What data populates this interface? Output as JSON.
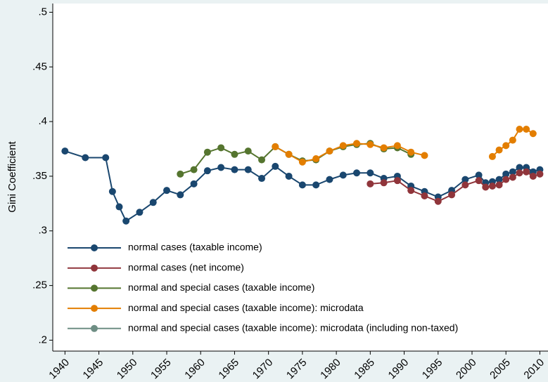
{
  "chart_data": {
    "type": "line",
    "y_label": "Gini Coefficient",
    "xlim": [
      1938.2,
      2011.2
    ],
    "xticks": [
      1940,
      1945,
      1950,
      1955,
      1960,
      1965,
      1970,
      1975,
      1980,
      1985,
      1990,
      1995,
      2000,
      2005,
      2010
    ],
    "ylim": [
      0.19,
      0.508
    ],
    "yticks": [
      {
        "value": 0.2,
        "label": ".2"
      },
      {
        "value": 0.25,
        "label": ".25"
      },
      {
        "value": 0.3,
        "label": ".3"
      },
      {
        "value": 0.35,
        "label": ".35"
      },
      {
        "value": 0.4,
        "label": ".4"
      },
      {
        "value": 0.45,
        "label": ".45"
      },
      {
        "value": 0.5,
        "label": ".5"
      }
    ],
    "grid": false,
    "legend": "bottom-left",
    "series": [
      {
        "name": "normal cases (taxable income)",
        "color": "#1a476f",
        "x": [
          1940,
          1943,
          1946,
          1947,
          1948,
          1949,
          1951,
          1953,
          1955,
          1957,
          1959,
          1961,
          1963,
          1965,
          1967,
          1969,
          1971,
          1973,
          1975,
          1977,
          1979,
          1981,
          1983,
          1985,
          1987,
          1989,
          1991,
          1993,
          1995,
          1997,
          1999,
          2001,
          2002,
          2003,
          2004,
          2005,
          2006,
          2007,
          2008,
          2009,
          2010
        ],
        "values": [
          0.373,
          0.367,
          0.367,
          0.336,
          0.322,
          0.309,
          0.317,
          0.326,
          0.337,
          0.333,
          0.343,
          0.355,
          0.358,
          0.356,
          0.356,
          0.348,
          0.359,
          0.35,
          0.342,
          0.342,
          0.347,
          0.351,
          0.353,
          0.353,
          0.348,
          0.35,
          0.341,
          0.336,
          0.331,
          0.337,
          0.347,
          0.351,
          0.344,
          0.345,
          0.347,
          0.352,
          0.354,
          0.358,
          0.358,
          0.354,
          0.356
        ]
      },
      {
        "name": "normal cases (net income)",
        "color": "#90353b",
        "x": [
          1985,
          1987,
          1989,
          1991,
          1993,
          1995,
          1997,
          1999,
          2001,
          2002,
          2003,
          2004,
          2005,
          2006,
          2007,
          2008,
          2009,
          2010
        ],
        "values": [
          0.343,
          0.344,
          0.346,
          0.337,
          0.332,
          0.327,
          0.333,
          0.342,
          0.346,
          0.34,
          0.341,
          0.342,
          0.347,
          0.349,
          0.353,
          0.354,
          0.35,
          0.352
        ]
      },
      {
        "name": "normal and special cases (taxable income)",
        "color": "#55752f",
        "x": [
          1957,
          1959,
          1961,
          1963,
          1965,
          1967,
          1969,
          1971,
          1973,
          1975,
          1977,
          1979,
          1981,
          1983,
          1985,
          1987,
          1989,
          1991
        ],
        "values": [
          0.352,
          0.356,
          0.372,
          0.376,
          0.37,
          0.373,
          0.365,
          0.377,
          0.37,
          0.364,
          0.365,
          0.373,
          0.377,
          0.379,
          0.38,
          0.375,
          0.376,
          0.37
        ]
      },
      {
        "name": "normal and special cases (taxable income): microdata",
        "color": "#e37e00",
        "x": [
          1971,
          1973,
          1975,
          1977,
          1979,
          1981,
          1983,
          1985,
          1987,
          1989,
          1991,
          1993,
          1998,
          2003,
          2004,
          2005,
          2006,
          2007,
          2008,
          2009
        ],
        "values": [
          0.377,
          0.37,
          0.363,
          0.366,
          0.373,
          0.378,
          0.38,
          0.379,
          0.376,
          0.378,
          0.372,
          0.369,
          null,
          0.368,
          0.374,
          0.378,
          0.383,
          0.393,
          0.393,
          0.389
        ]
      },
      {
        "name": "normal and special cases (taxable income): microdata (including non-taxed)",
        "color": "#6e8e84",
        "x": [],
        "values": []
      }
    ]
  }
}
